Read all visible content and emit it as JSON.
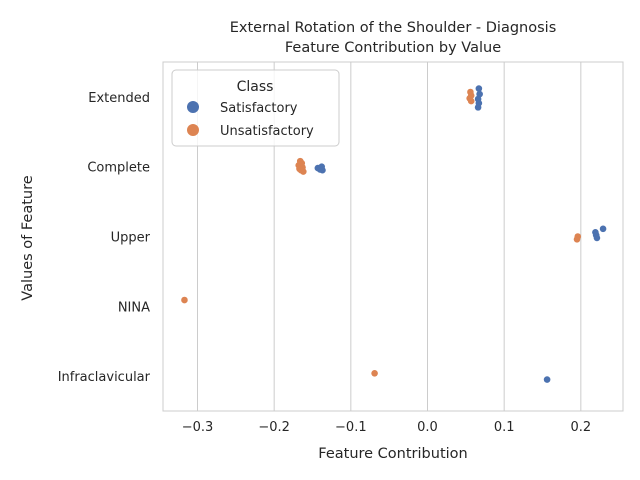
{
  "chart_data": {
    "type": "scatter",
    "title": "External Rotation of the Shoulder - Diagnosis",
    "subtitle": "Feature Contribution by Value",
    "xlabel": "Feature Contribution",
    "ylabel": "Values of Feature",
    "xlim": [
      -0.345,
      0.255
    ],
    "x_ticks": [
      -0.3,
      -0.2,
      -0.1,
      0.0,
      0.1,
      0.2
    ],
    "x_tick_labels": [
      "−0.3",
      "−0.2",
      "−0.1",
      "0.0",
      "0.1",
      "0.2"
    ],
    "categories": [
      "Extended",
      "Complete",
      "Upper",
      "NINA",
      "Infraclavicular"
    ],
    "grid": "vertical",
    "legend": {
      "title": "Class",
      "placement": "top-left"
    },
    "series": [
      {
        "name": "Satisfactory",
        "color": "#4c72b0",
        "points": [
          {
            "category": "Extended",
            "x": 0.067,
            "jitter": -0.12
          },
          {
            "category": "Extended",
            "x": 0.068,
            "jitter": -0.04
          },
          {
            "category": "Extended",
            "x": 0.066,
            "jitter": 0.03
          },
          {
            "category": "Extended",
            "x": 0.067,
            "jitter": 0.09
          },
          {
            "category": "Extended",
            "x": 0.066,
            "jitter": 0.15
          },
          {
            "category": "Complete",
            "x": -0.143,
            "jitter": 0.02
          },
          {
            "category": "Complete",
            "x": -0.14,
            "jitter": 0.04
          },
          {
            "category": "Complete",
            "x": -0.138,
            "jitter": 0.0
          },
          {
            "category": "Complete",
            "x": -0.137,
            "jitter": 0.05
          },
          {
            "category": "Upper",
            "x": 0.229,
            "jitter": -0.11
          },
          {
            "category": "Upper",
            "x": 0.219,
            "jitter": -0.06
          },
          {
            "category": "Upper",
            "x": 0.22,
            "jitter": -0.02
          },
          {
            "category": "Upper",
            "x": 0.221,
            "jitter": 0.02
          },
          {
            "category": "Infraclavicular",
            "x": 0.156,
            "jitter": 0.05
          }
        ]
      },
      {
        "name": "Unsatisfactory",
        "color": "#dd8452",
        "points": [
          {
            "category": "Extended",
            "x": 0.056,
            "jitter": -0.07
          },
          {
            "category": "Extended",
            "x": 0.057,
            "jitter": -0.02
          },
          {
            "category": "Extended",
            "x": 0.055,
            "jitter": 0.02
          },
          {
            "category": "Extended",
            "x": 0.057,
            "jitter": 0.06
          },
          {
            "category": "Complete",
            "x": -0.166,
            "jitter": -0.08
          },
          {
            "category": "Complete",
            "x": -0.164,
            "jitter": -0.05
          },
          {
            "category": "Complete",
            "x": -0.168,
            "jitter": -0.02
          },
          {
            "category": "Complete",
            "x": -0.163,
            "jitter": 0.01
          },
          {
            "category": "Complete",
            "x": -0.167,
            "jitter": 0.03
          },
          {
            "category": "Complete",
            "x": -0.165,
            "jitter": 0.05
          },
          {
            "category": "Complete",
            "x": -0.162,
            "jitter": 0.07
          },
          {
            "category": "Upper",
            "x": 0.196,
            "jitter": 0.0
          },
          {
            "category": "Upper",
            "x": 0.195,
            "jitter": 0.04
          },
          {
            "category": "NINA",
            "x": -0.317,
            "jitter": -0.09
          },
          {
            "category": "Infraclavicular",
            "x": -0.069,
            "jitter": -0.04
          }
        ]
      }
    ]
  }
}
